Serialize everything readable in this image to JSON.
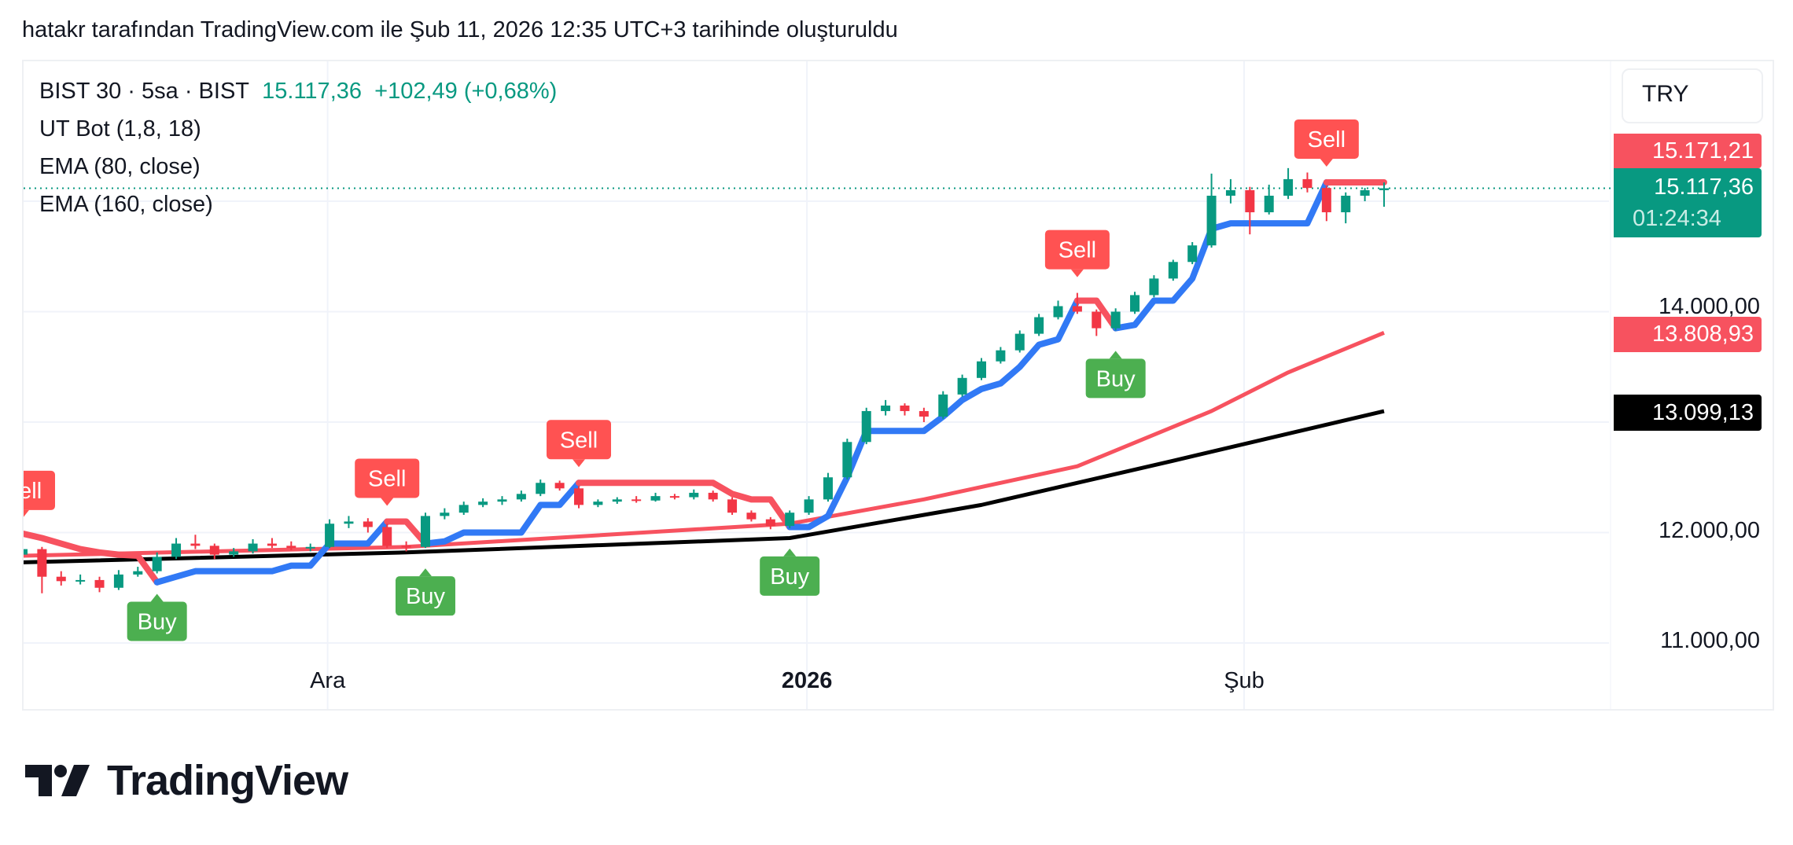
{
  "header": {
    "title": "hatakr tarafından TradingView.com ile Şub 11, 2026 12:35 UTC+3 tarihinde oluşturuldu"
  },
  "legend": {
    "symbol": "BIST 30 · 5sa · BIST",
    "last": "15.117,36",
    "change": "+102,49 (+0,68%)",
    "indicators": [
      "UT Bot (1,8, 18)",
      "EMA (80, close)",
      "EMA (160, close)"
    ]
  },
  "currency": "TRY",
  "price_axis": {
    "ticks": [
      "14.000,00",
      "12.000,00",
      "11.000,00"
    ],
    "tags": {
      "ut_bot": "15.171,21",
      "last_price": "15.117,36",
      "countdown": "01:24:34",
      "ema80": "13.808,93",
      "ema160": "13.099,13"
    }
  },
  "time_axis": {
    "ticks": [
      {
        "label": "Ara",
        "index": 15.9,
        "bold": false
      },
      {
        "label": "2026",
        "index": 40.9,
        "bold": true
      },
      {
        "label": "Şub",
        "index": 63.7,
        "bold": false
      }
    ]
  },
  "brand": {
    "logo_text": "TradingView"
  },
  "colors": {
    "up": "#089981",
    "down": "#F23645",
    "ut_long": "#3179F5",
    "ut_short": "#F7525F",
    "ema80": "#F7525F",
    "ema160": "#000000",
    "buy": "#4CAF50",
    "sell": "#FF5252"
  },
  "chart_data": {
    "type": "candlestick",
    "title": "BIST 30 · 5sa · BIST",
    "ylim": [
      10900,
      15900
    ],
    "yticks": [
      11000,
      12000,
      13000,
      14000,
      15000
    ],
    "grid": true,
    "last_price": 15117.36,
    "ohlc": [
      [
        11800,
        11900,
        11750,
        11850
      ],
      [
        11850,
        11870,
        11450,
        11600
      ],
      [
        11600,
        11650,
        11520,
        11560
      ],
      [
        11560,
        11620,
        11530,
        11570
      ],
      [
        11570,
        11600,
        11460,
        11500
      ],
      [
        11500,
        11660,
        11480,
        11620
      ],
      [
        11620,
        11690,
        11600,
        11650
      ],
      [
        11650,
        11820,
        11630,
        11780
      ],
      [
        11780,
        11950,
        11760,
        11900
      ],
      [
        11900,
        11980,
        11850,
        11880
      ],
      [
        11880,
        11900,
        11760,
        11800
      ],
      [
        11800,
        11860,
        11780,
        11830
      ],
      [
        11830,
        11940,
        11810,
        11900
      ],
      [
        11900,
        11950,
        11860,
        11880
      ],
      [
        11880,
        11920,
        11840,
        11860
      ],
      [
        11860,
        11900,
        11830,
        11870
      ],
      [
        11870,
        12120,
        11860,
        12080
      ],
      [
        12080,
        12150,
        12040,
        12100
      ],
      [
        12100,
        12130,
        12000,
        12050
      ],
      [
        12050,
        12080,
        11860,
        11880
      ],
      [
        11880,
        11920,
        11830,
        11870
      ],
      [
        11870,
        12180,
        11860,
        12150
      ],
      [
        12150,
        12220,
        12120,
        12180
      ],
      [
        12180,
        12280,
        12160,
        12250
      ],
      [
        12250,
        12310,
        12230,
        12280
      ],
      [
        12280,
        12330,
        12250,
        12300
      ],
      [
        12300,
        12380,
        12280,
        12350
      ],
      [
        12350,
        12480,
        12330,
        12450
      ],
      [
        12450,
        12470,
        12380,
        12400
      ],
      [
        12400,
        12420,
        12220,
        12250
      ],
      [
        12250,
        12300,
        12230,
        12280
      ],
      [
        12280,
        12320,
        12260,
        12300
      ],
      [
        12300,
        12330,
        12270,
        12290
      ],
      [
        12290,
        12360,
        12280,
        12330
      ],
      [
        12330,
        12350,
        12300,
        12320
      ],
      [
        12320,
        12390,
        12300,
        12360
      ],
      [
        12360,
        12380,
        12280,
        12300
      ],
      [
        12300,
        12320,
        12160,
        12180
      ],
      [
        12180,
        12200,
        12100,
        12120
      ],
      [
        12120,
        12140,
        12030,
        12060
      ],
      [
        12060,
        12200,
        12040,
        12180
      ],
      [
        12180,
        12330,
        12160,
        12300
      ],
      [
        12300,
        12540,
        12280,
        12500
      ],
      [
        12500,
        12850,
        12480,
        12820
      ],
      [
        12820,
        13130,
        12800,
        13100
      ],
      [
        13100,
        13200,
        13060,
        13150
      ],
      [
        13150,
        13170,
        13060,
        13100
      ],
      [
        13100,
        13130,
        13000,
        13050
      ],
      [
        13050,
        13280,
        13030,
        13250
      ],
      [
        13250,
        13430,
        13230,
        13400
      ],
      [
        13400,
        13580,
        13380,
        13550
      ],
      [
        13550,
        13680,
        13530,
        13650
      ],
      [
        13650,
        13830,
        13630,
        13800
      ],
      [
        13800,
        13980,
        13780,
        13950
      ],
      [
        13950,
        14100,
        13930,
        14050
      ],
      [
        14050,
        14170,
        13980,
        14000
      ],
      [
        14000,
        14020,
        13780,
        13850
      ],
      [
        13850,
        14030,
        13830,
        14000
      ],
      [
        14000,
        14180,
        13980,
        14150
      ],
      [
        14150,
        14330,
        14130,
        14300
      ],
      [
        14300,
        14470,
        14280,
        14450
      ],
      [
        14450,
        14630,
        14430,
        14600
      ],
      [
        14600,
        15250,
        14580,
        15050
      ],
      [
        15050,
        15200,
        14980,
        15100
      ],
      [
        15100,
        15130,
        14700,
        14900
      ],
      [
        14900,
        15150,
        14880,
        15050
      ],
      [
        15050,
        15300,
        15020,
        15200
      ],
      [
        15200,
        15260,
        15080,
        15120
      ],
      [
        15120,
        15140,
        14820,
        14900
      ],
      [
        14900,
        15080,
        14800,
        15050
      ],
      [
        15050,
        15120,
        15000,
        15100
      ],
      [
        15100,
        15170,
        14950,
        15117.36
      ]
    ],
    "ut_bot_stop": [
      11990,
      11950,
      11900,
      11850,
      11820,
      11800,
      11790,
      11550,
      11600,
      11650,
      11650,
      11650,
      11650,
      11650,
      11700,
      11700,
      11900,
      11900,
      11900,
      12100,
      12100,
      11900,
      11920,
      12000,
      12000,
      12000,
      12000,
      12250,
      12250,
      12450,
      12450,
      12450,
      12450,
      12450,
      12450,
      12450,
      12450,
      12350,
      12300,
      12300,
      12050,
      12050,
      12150,
      12500,
      12920,
      12920,
      12920,
      12920,
      13050,
      13200,
      13300,
      13350,
      13500,
      13700,
      13750,
      14100,
      14100,
      13850,
      13880,
      14100,
      14100,
      14300,
      14750,
      14800,
      14800,
      14800,
      14800,
      14800,
      15171.21,
      15171.21,
      15171.21,
      15171.21
    ],
    "ut_bot_state": [
      "short",
      0,
      "long",
      7,
      "short",
      19,
      "long",
      21,
      "short",
      29,
      "long",
      40,
      "short",
      55,
      "long",
      57,
      "short",
      68
    ],
    "ema80": [
      [
        0,
        11790
      ],
      [
        20,
        11870
      ],
      [
        40,
        12080
      ],
      [
        47,
        12300
      ],
      [
        55,
        12600
      ],
      [
        62,
        13100
      ],
      [
        66,
        13450
      ],
      [
        71,
        13808.93
      ]
    ],
    "ema160": [
      [
        0,
        11730
      ],
      [
        20,
        11820
      ],
      [
        40,
        11950
      ],
      [
        50,
        12250
      ],
      [
        60,
        12650
      ],
      [
        71,
        13099.13
      ]
    ],
    "signals": [
      {
        "index": 0,
        "type": "sell",
        "label": "Sell"
      },
      {
        "index": 7,
        "type": "buy",
        "label": "Buy"
      },
      {
        "index": 19,
        "type": "sell",
        "label": "Sell"
      },
      {
        "index": 21,
        "type": "buy",
        "label": "Buy"
      },
      {
        "index": 29,
        "type": "sell",
        "label": "Sell"
      },
      {
        "index": 40,
        "type": "buy",
        "label": "Buy"
      },
      {
        "index": 55,
        "type": "sell",
        "label": "Sell"
      },
      {
        "index": 57,
        "type": "buy",
        "label": "Buy"
      },
      {
        "index": 68,
        "type": "sell",
        "label": "Sell"
      }
    ]
  }
}
